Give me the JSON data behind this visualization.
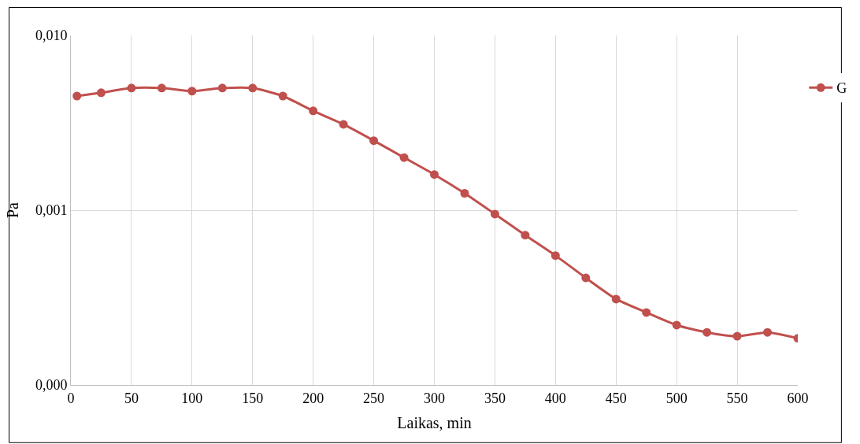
{
  "chart_data": {
    "type": "line",
    "xlabel": "Laikas, min",
    "ylabel": "Pa",
    "x": [
      5,
      25,
      50,
      75,
      100,
      125,
      150,
      175,
      200,
      225,
      250,
      275,
      300,
      325,
      350,
      375,
      400,
      425,
      450,
      475,
      500,
      525,
      550,
      575,
      600
    ],
    "series": [
      {
        "name": "G",
        "color": "#c0504d",
        "values": [
          0.0045,
          0.0047,
          0.005,
          0.005,
          0.0048,
          0.005,
          0.005,
          0.0045,
          0.0037,
          0.0031,
          0.0025,
          0.002,
          0.0016,
          0.00125,
          0.00095,
          0.00072,
          0.00055,
          0.00041,
          0.00031,
          0.00026,
          0.00022,
          0.0002,
          0.00019,
          0.0002,
          0.000185
        ]
      }
    ],
    "xlim": [
      0,
      600
    ],
    "xticks": [
      0,
      50,
      100,
      150,
      200,
      250,
      300,
      350,
      400,
      450,
      500,
      550,
      600
    ],
    "ylim": [
      0.0001,
      0.01
    ],
    "yticks": [
      {
        "value": 0.0001,
        "label": "0,000"
      },
      {
        "value": 0.001,
        "label": "0,001"
      },
      {
        "value": 0.01,
        "label": "0,010"
      }
    ],
    "log": "y",
    "grid": true,
    "legend": "right",
    "marker": "circle",
    "line_style": "solid"
  }
}
